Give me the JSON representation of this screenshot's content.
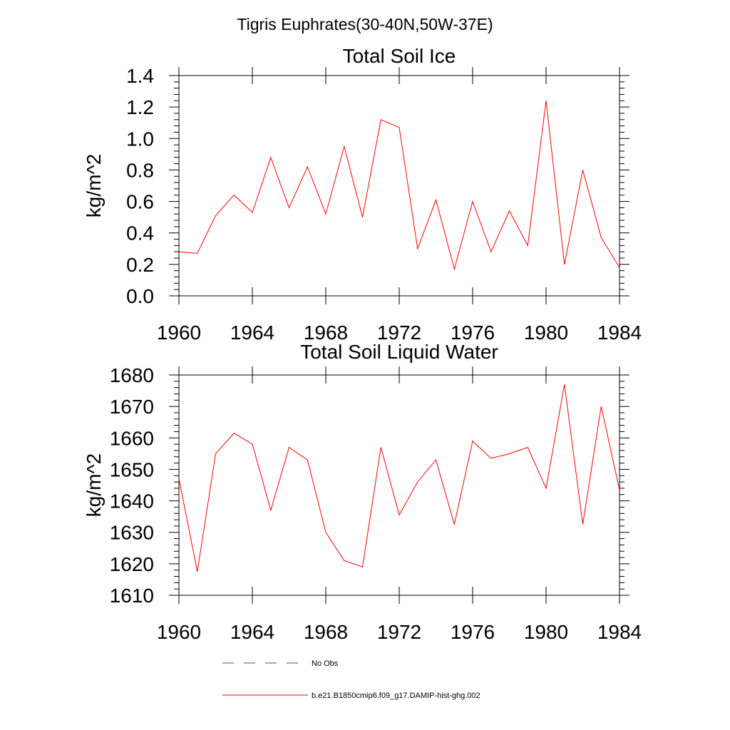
{
  "figure": {
    "title": "Tigris Euphrates(30-40N,50W-37E)"
  },
  "legend": {
    "items": [
      {
        "label": "No Obs",
        "color": "#4b4b8f",
        "style": "dashed"
      },
      {
        "label": "b.e21.B1850cmip6.f09_g17.DAMIP-hist-ghg.002",
        "color": "#ff0000",
        "style": "solid"
      }
    ]
  },
  "chart_data": [
    {
      "type": "line",
      "title": "Total Soil Ice",
      "xlabel": "",
      "ylabel": "kg/m^2",
      "xlim": [
        1960,
        1984
      ],
      "ylim": [
        0.0,
        1.4
      ],
      "xticks": [
        1960,
        1964,
        1968,
        1972,
        1976,
        1980,
        1984
      ],
      "yticks": [
        0.0,
        0.2,
        0.4,
        0.6,
        0.8,
        1.0,
        1.2,
        1.4
      ],
      "ytick_labels": [
        "0.0",
        "0.2",
        "0.4",
        "0.6",
        "0.8",
        "1.0",
        "1.2",
        "1.4"
      ],
      "grid": false,
      "series": [
        {
          "name": "b.e21.B1850cmip6.f09_g17.DAMIP-hist-ghg.002",
          "color": "#ff0000",
          "x": [
            1960,
            1961,
            1962,
            1963,
            1964,
            1965,
            1966,
            1967,
            1968,
            1969,
            1970,
            1971,
            1972,
            1973,
            1974,
            1975,
            1976,
            1977,
            1978,
            1979,
            1980,
            1981,
            1982,
            1983,
            1984
          ],
          "values": [
            0.28,
            0.27,
            0.51,
            0.64,
            0.53,
            0.88,
            0.56,
            0.82,
            0.52,
            0.95,
            0.5,
            1.12,
            1.07,
            0.3,
            0.61,
            0.17,
            0.6,
            0.28,
            0.54,
            0.32,
            1.24,
            0.2,
            0.8,
            0.37,
            0.18
          ]
        }
      ]
    },
    {
      "type": "line",
      "title": "Total Soil Liquid Water",
      "xlabel": "",
      "ylabel": "kg/m^2",
      "xlim": [
        1960,
        1984
      ],
      "ylim": [
        1610,
        1680
      ],
      "xticks": [
        1960,
        1964,
        1968,
        1972,
        1976,
        1980,
        1984
      ],
      "yticks": [
        1610,
        1620,
        1630,
        1640,
        1650,
        1660,
        1670,
        1680
      ],
      "ytick_labels": [
        "1610",
        "1620",
        "1630",
        "1640",
        "1650",
        "1660",
        "1670",
        "1680"
      ],
      "grid": false,
      "series": [
        {
          "name": "b.e21.B1850cmip6.f09_g17.DAMIP-hist-ghg.002",
          "color": "#ff0000",
          "x": [
            1960,
            1961,
            1962,
            1963,
            1964,
            1965,
            1966,
            1967,
            1968,
            1969,
            1970,
            1971,
            1972,
            1973,
            1974,
            1975,
            1976,
            1977,
            1978,
            1979,
            1980,
            1981,
            1982,
            1983,
            1984
          ],
          "values": [
            1647,
            1617.5,
            1655,
            1661.5,
            1658,
            1637,
            1657,
            1653,
            1630,
            1621,
            1619,
            1657,
            1635.5,
            1646,
            1653,
            1632.5,
            1659,
            1653.5,
            1655,
            1657,
            1644,
            1677,
            1632.5,
            1670,
            1643.5
          ]
        }
      ]
    }
  ]
}
